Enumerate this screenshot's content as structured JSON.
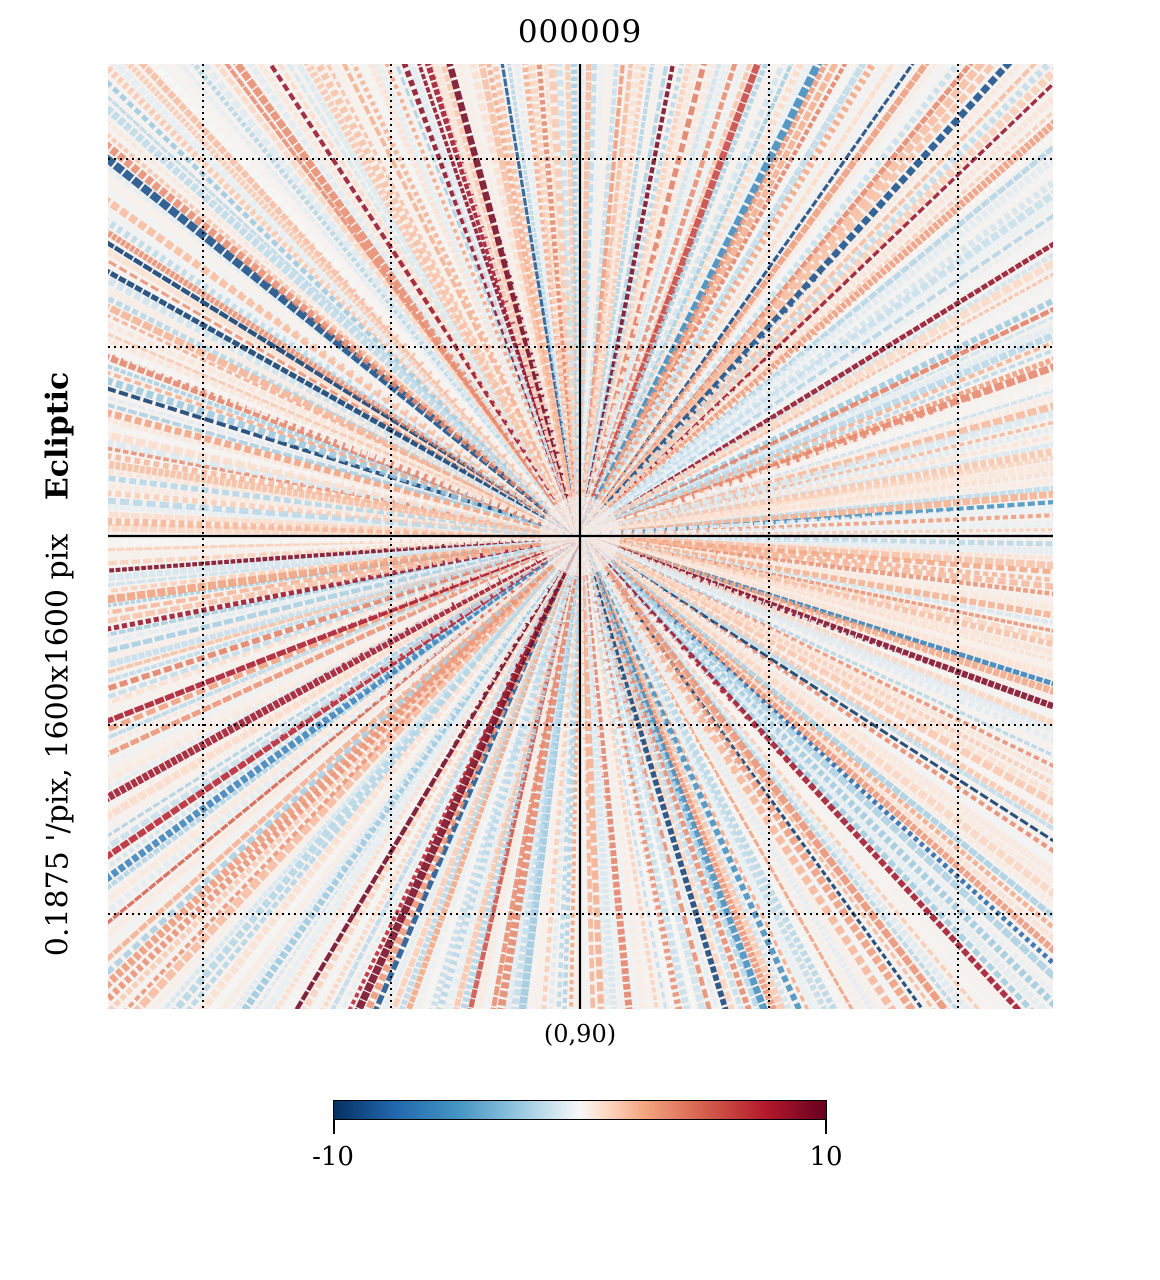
{
  "title": "000009",
  "ylabel": {
    "coord_system": "Ecliptic",
    "resolution": "1600x1600 pix",
    "pixel_size": "0.1875 '/pix,"
  },
  "center_label": "(0,90)",
  "colorbar": {
    "min_label": "-10",
    "max_label": "10",
    "colormap": "RdBu_r",
    "stops": [
      "#053061",
      "#2166ac",
      "#4393c3",
      "#92c5de",
      "#d1e5f0",
      "#f7f7f7",
      "#fddbc7",
      "#f4a582",
      "#d6604d",
      "#b2182b",
      "#67001f"
    ]
  },
  "chart_data": {
    "type": "heatmap",
    "title": "000009",
    "projection": "gnomonic",
    "center": [
      0,
      90
    ],
    "coord": "Ecliptic",
    "xsize_pix": 1600,
    "ysize_pix": 1600,
    "reso_arcmin": 0.1875,
    "vmin": -10,
    "vmax": 10,
    "colormap": "RdBu_r",
    "graticule": true,
    "pattern": "radial streaks of alternating positive/negative values emanating from the center"
  }
}
